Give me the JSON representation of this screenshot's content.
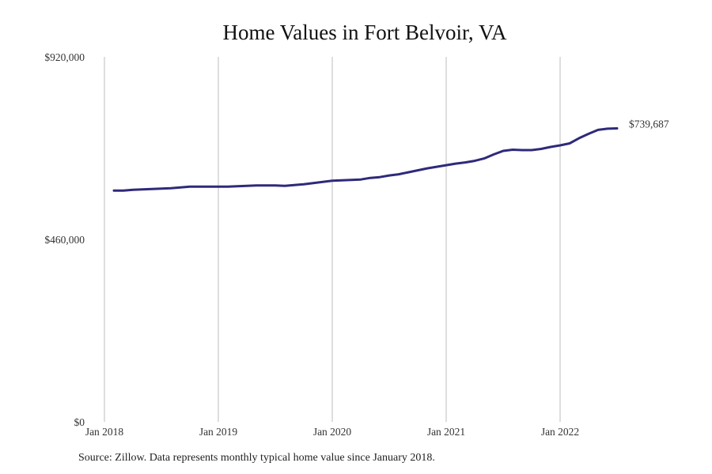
{
  "chart_data": {
    "type": "line",
    "title": "Home Values in Fort Belvoir, VA",
    "xlabel": "",
    "ylabel": "",
    "ylim": [
      0,
      920000
    ],
    "y_ticks": [
      0,
      460000,
      920000
    ],
    "y_tick_labels": [
      "$0",
      "$460,000",
      "$920,000"
    ],
    "x_tick_labels": [
      "Jan 2018",
      "Jan 2019",
      "Jan 2020",
      "Jan 2021",
      "Jan 2022"
    ],
    "x_start": "Feb 2018",
    "x_end": "Jul 2022",
    "frequency": "monthly",
    "grid": "vertical",
    "line_color": "#2e2a7a",
    "end_label": "$739,687",
    "values": [
      583000,
      583000,
      585000,
      586000,
      587000,
      588000,
      589000,
      591000,
      593000,
      593000,
      593000,
      593000,
      593000,
      594000,
      595000,
      596000,
      596000,
      596000,
      595000,
      597000,
      599000,
      602000,
      605000,
      608000,
      609000,
      610000,
      611000,
      615000,
      617000,
      621000,
      624000,
      629000,
      634000,
      639000,
      643000,
      647000,
      651000,
      654000,
      658000,
      664000,
      674000,
      683000,
      686000,
      685000,
      685000,
      688000,
      693000,
      697000,
      702000,
      715000,
      726000,
      736000,
      739000,
      739687
    ]
  },
  "footer": {
    "source": "Source: Zillow. Data represents monthly typical home value since January 2018."
  }
}
